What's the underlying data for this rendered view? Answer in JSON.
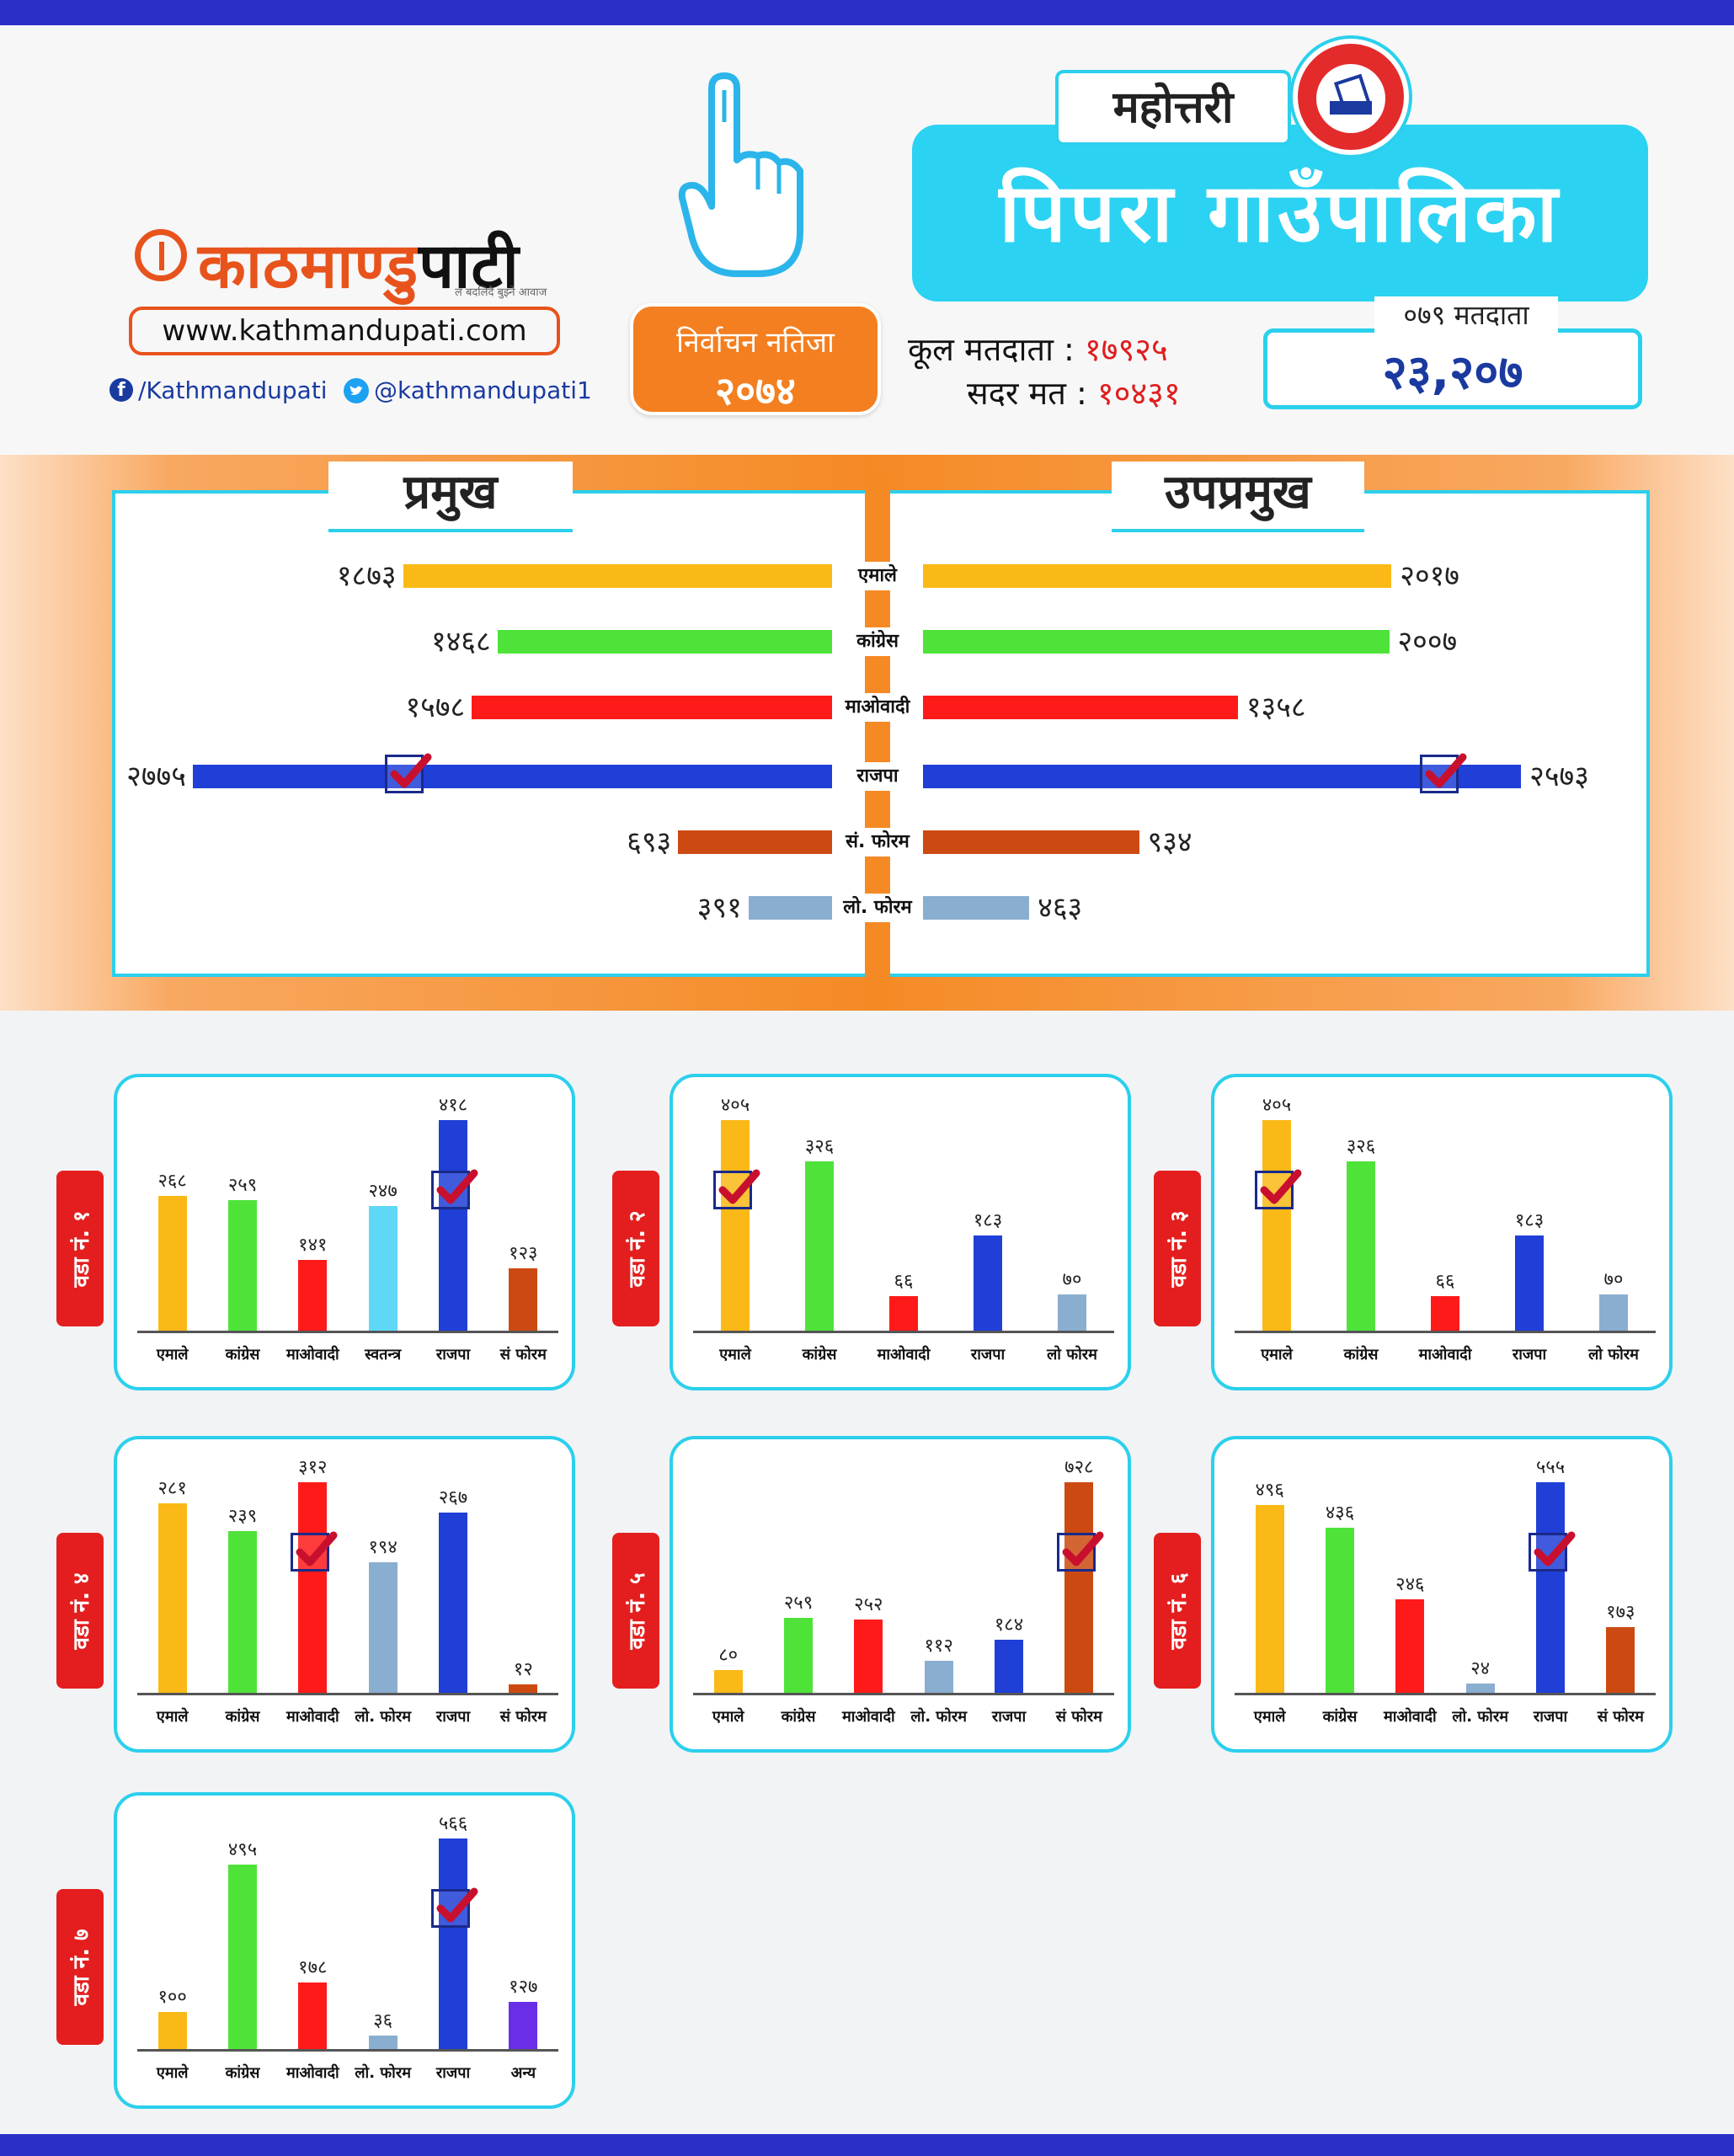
{
  "header": {
    "logo_text_1": "काठमाण्डु",
    "logo_text_2": "पाटी",
    "tagline": "ल बदलिदै बुझ्ने आवाज",
    "website": "www.kathmandupati.com",
    "facebook": "/Kathmandupati",
    "twitter": "@kathmandupati1",
    "result_label": "निर्वाचन नतिजा",
    "result_year": "२०७४",
    "district": "महोत्तरी",
    "municipality": "पिपरा गाउँपालिका",
    "total_voters_label": "कूल मतदाता :",
    "total_voters_value": "१७९२५",
    "valid_votes_label": "सदर मत :",
    "valid_votes_value": "१०४३१",
    "voters_079_label": "०७९ मतदाता",
    "voters_079_value": "२३,२०७"
  },
  "colors": {
    "accent_cyan": "#2cd2f2",
    "accent_orange": "#f58a25",
    "ward_tab_red": "#e41e1e",
    "check_red": "#c8102e",
    "check_box": "#1a2a8a"
  },
  "chart_data": [
    {
      "type": "bar",
      "title_left": "प्रमुख",
      "title_right": "उपप्रमुख",
      "categories": [
        "एमाले",
        "कांग्रेस",
        "माओवादी",
        "राजपा",
        "सं. फोरम",
        "लो. फोरम"
      ],
      "colors": [
        "#fbb917",
        "#4fe33a",
        "#ff1a1a",
        "#1f3fd6",
        "#cc4a12",
        "#8aaed0"
      ],
      "series": [
        {
          "name": "प्रमुख",
          "values": [
            1873,
            1468,
            1578,
            2775,
            693,
            391
          ],
          "labels": [
            "१८७३",
            "१४६८",
            "१५७८",
            "२७७५",
            "६९३",
            "३९१"
          ],
          "winner_index": 3
        },
        {
          "name": "उपप्रमुख",
          "values": [
            2017,
            2007,
            1358,
            2573,
            934,
            463
          ],
          "labels": [
            "२०१७",
            "२००७",
            "१३५८",
            "२५७३",
            "९३४",
            "४६३"
          ],
          "winner_index": 3
        }
      ]
    },
    {
      "type": "bar",
      "ward": "वडा नं. १",
      "categories": [
        "एमाले",
        "कांग्रेस",
        "माओवादी",
        "स्वतन्त्र",
        "राजपा",
        "सं फोरम"
      ],
      "values": [
        268,
        259,
        141,
        247,
        418,
        123
      ],
      "labels": [
        "२६८",
        "२५९",
        "१४१",
        "२४७",
        "४१८",
        "१२३"
      ],
      "colors": [
        "#fbb917",
        "#4fe33a",
        "#ff1a1a",
        "#5fd8f7",
        "#1f3fd6",
        "#cc4a12"
      ],
      "winner_index": 4
    },
    {
      "type": "bar",
      "ward": "वडा नं. २",
      "categories": [
        "एमाले",
        "कांग्रेस",
        "माओवादी",
        "राजपा",
        "लो फोरम"
      ],
      "values": [
        405,
        326,
        66,
        183,
        70
      ],
      "labels": [
        "४०५",
        "३२६",
        "६६",
        "१८३",
        "७०"
      ],
      "colors": [
        "#fbb917",
        "#4fe33a",
        "#ff1a1a",
        "#1f3fd6",
        "#8aaed0"
      ],
      "winner_index": 0
    },
    {
      "type": "bar",
      "ward": "वडा नं. ३",
      "categories": [
        "एमाले",
        "कांग्रेस",
        "माओवादी",
        "राजपा",
        "लो फोरम"
      ],
      "values": [
        405,
        326,
        66,
        183,
        70
      ],
      "labels": [
        "४०५",
        "३२६",
        "६६",
        "१८३",
        "७०"
      ],
      "colors": [
        "#fbb917",
        "#4fe33a",
        "#ff1a1a",
        "#1f3fd6",
        "#8aaed0"
      ],
      "winner_index": 0
    },
    {
      "type": "bar",
      "ward": "वडा नं. ४",
      "categories": [
        "एमाले",
        "कांग्रेस",
        "माओवादी",
        "लो. फोरम",
        "राजपा",
        "सं फोरम"
      ],
      "values": [
        281,
        239,
        312,
        194,
        267,
        12
      ],
      "labels": [
        "२८१",
        "२३९",
        "३१२",
        "१९४",
        "२६७",
        "१२"
      ],
      "colors": [
        "#fbb917",
        "#4fe33a",
        "#ff1a1a",
        "#8aaed0",
        "#1f3fd6",
        "#cc4a12"
      ],
      "winner_index": 2
    },
    {
      "type": "bar",
      "ward": "वडा नं. ५",
      "categories": [
        "एमाले",
        "कांग्रेस",
        "माओवादी",
        "लो. फोरम",
        "राजपा",
        "सं फोरम"
      ],
      "values": [
        80,
        259,
        252,
        112,
        184,
        728
      ],
      "labels": [
        "८०",
        "२५९",
        "२५२",
        "११२",
        "१८४",
        "७२८"
      ],
      "colors": [
        "#fbb917",
        "#4fe33a",
        "#ff1a1a",
        "#8aaed0",
        "#1f3fd6",
        "#cc4a12"
      ],
      "winner_index": 5
    },
    {
      "type": "bar",
      "ward": "वडा नं. ६",
      "categories": [
        "एमाले",
        "कांग्रेस",
        "माओवादी",
        "लो. फोरम",
        "राजपा",
        "सं फोरम"
      ],
      "values": [
        496,
        436,
        246,
        24,
        555,
        173
      ],
      "labels": [
        "४९६",
        "४३६",
        "२४६",
        "२४",
        "५५५",
        "१७३"
      ],
      "colors": [
        "#fbb917",
        "#4fe33a",
        "#ff1a1a",
        "#8aaed0",
        "#1f3fd6",
        "#cc4a12"
      ],
      "winner_index": 4
    },
    {
      "type": "bar",
      "ward": "वडा नं. ७",
      "categories": [
        "एमाले",
        "कांग्रेस",
        "माओवादी",
        "लो. फोरम",
        "राजपा",
        "अन्य"
      ],
      "values": [
        100,
        495,
        178,
        36,
        566,
        127
      ],
      "labels": [
        "१००",
        "४९५",
        "१७८",
        "३६",
        "५६६",
        "१२७"
      ],
      "colors": [
        "#fbb917",
        "#4fe33a",
        "#ff1a1a",
        "#8aaed0",
        "#1f3fd6",
        "#6a2ee6"
      ],
      "winner_index": 4
    }
  ]
}
